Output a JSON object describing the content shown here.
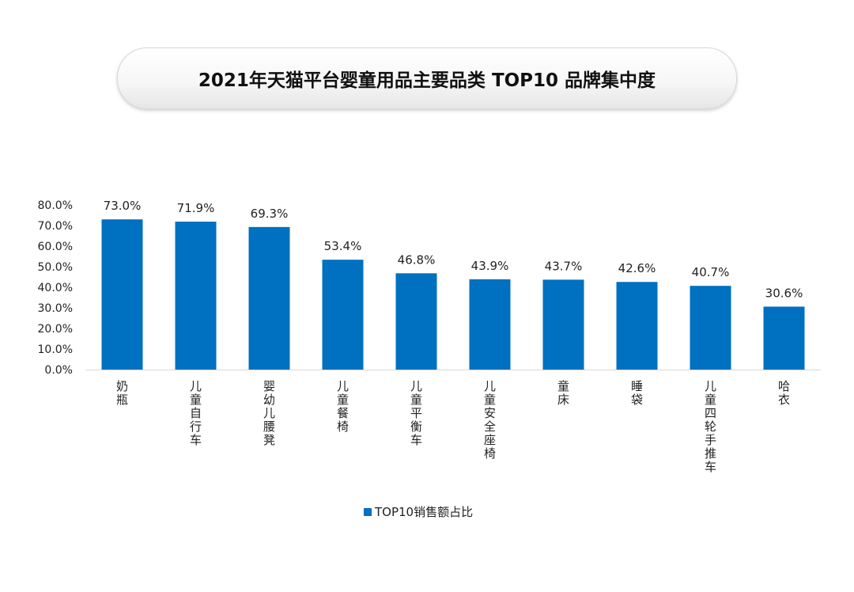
{
  "chart_data": {
    "type": "bar",
    "title": "2021年天猫平台婴童用品主要品类 TOP10 品牌集中度",
    "categories": [
      "奶瓶",
      "儿童自行车",
      "婴幼儿腰凳",
      "儿童餐椅",
      "儿童平衡车",
      "儿童安全座椅",
      "童床",
      "睡袋",
      "儿童四轮手推车",
      "哈衣"
    ],
    "series": [
      {
        "name": "TOP10销售额占比",
        "values": [
          73.0,
          71.9,
          69.3,
          53.4,
          46.8,
          43.9,
          43.7,
          42.6,
          40.7,
          30.6
        ],
        "labels": [
          "73.0%",
          "71.9%",
          "69.3%",
          "53.4%",
          "46.8%",
          "43.9%",
          "43.7%",
          "42.6%",
          "40.7%",
          "30.6%"
        ]
      }
    ],
    "y_ticks": [
      "0.0%",
      "10.0%",
      "20.0%",
      "30.0%",
      "40.0%",
      "50.0%",
      "60.0%",
      "70.0%",
      "80.0%"
    ],
    "ylim": [
      0,
      80
    ],
    "grid": false,
    "legend_position": "bottom",
    "colors": {
      "bar": "#0070C0",
      "axis": "#d9d9d9"
    }
  }
}
